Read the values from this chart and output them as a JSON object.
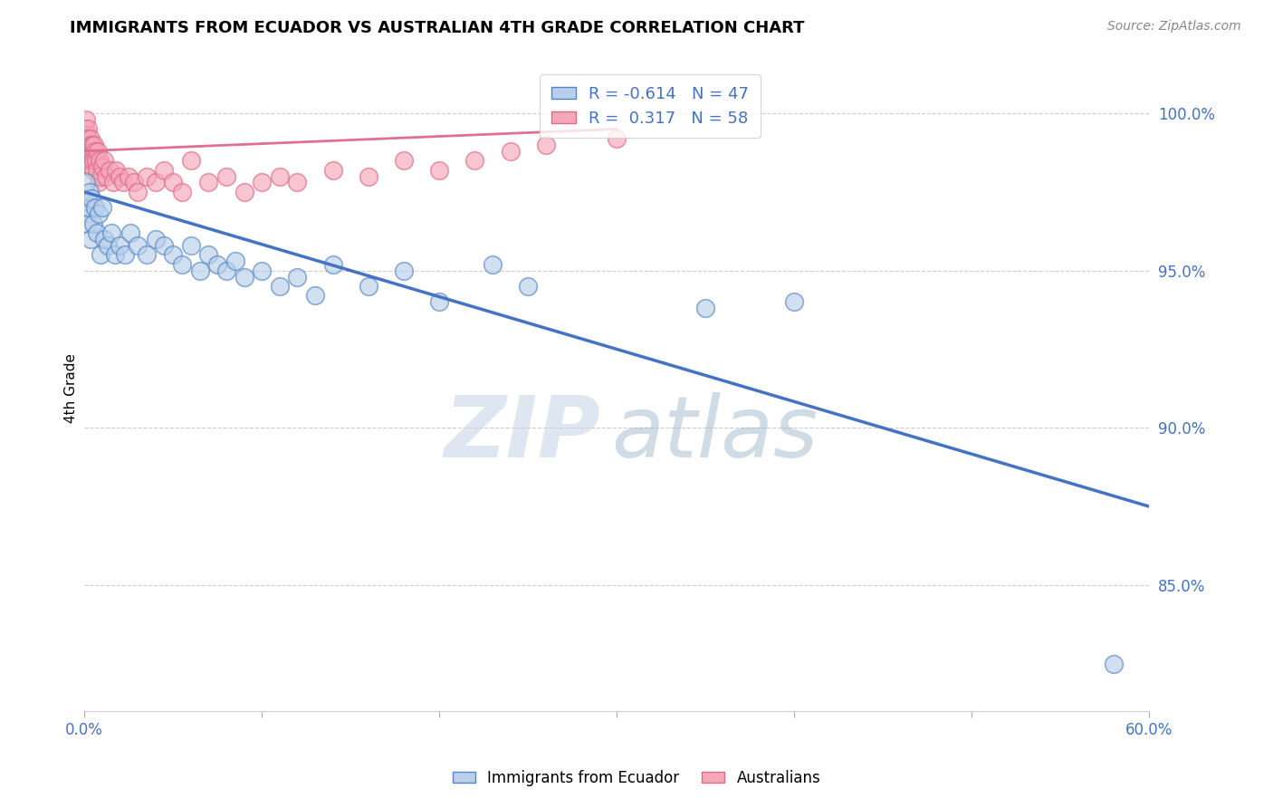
{
  "title": "IMMIGRANTS FROM ECUADOR VS AUSTRALIAN 4TH GRADE CORRELATION CHART",
  "source": "Source: ZipAtlas.com",
  "ylabel": "4th Grade",
  "xlim": [
    0.0,
    60.0
  ],
  "ylim": [
    81.0,
    101.5
  ],
  "yticks": [
    85.0,
    90.0,
    95.0,
    100.0
  ],
  "xticks": [
    0.0,
    10.0,
    20.0,
    30.0,
    40.0,
    50.0,
    60.0
  ],
  "blue_R": -0.614,
  "blue_N": 47,
  "pink_R": 0.317,
  "pink_N": 58,
  "blue_color": "#b8d0ea",
  "pink_color": "#f4a8b8",
  "blue_edge_color": "#5585c5",
  "pink_edge_color": "#e06888",
  "blue_line_color": "#4472c4",
  "pink_line_color": "#e07090",
  "text_blue": "#4472c4",
  "blue_scatter_x": [
    0.05,
    0.1,
    0.15,
    0.2,
    0.25,
    0.3,
    0.35,
    0.4,
    0.5,
    0.6,
    0.7,
    0.8,
    0.9,
    1.0,
    1.1,
    1.3,
    1.5,
    1.7,
    2.0,
    2.3,
    2.6,
    3.0,
    3.5,
    4.0,
    4.5,
    5.0,
    5.5,
    6.0,
    6.5,
    7.0,
    7.5,
    8.0,
    8.5,
    9.0,
    10.0,
    11.0,
    12.0,
    13.0,
    14.0,
    16.0,
    18.0,
    20.0,
    23.0,
    25.0,
    35.0,
    40.0,
    58.0
  ],
  "blue_scatter_y": [
    97.2,
    97.8,
    96.8,
    96.5,
    97.0,
    97.5,
    96.0,
    97.3,
    96.5,
    97.0,
    96.2,
    96.8,
    95.5,
    97.0,
    96.0,
    95.8,
    96.2,
    95.5,
    95.8,
    95.5,
    96.2,
    95.8,
    95.5,
    96.0,
    95.8,
    95.5,
    95.2,
    95.8,
    95.0,
    95.5,
    95.2,
    95.0,
    95.3,
    94.8,
    95.0,
    94.5,
    94.8,
    94.2,
    95.2,
    94.5,
    95.0,
    94.0,
    95.2,
    94.5,
    93.8,
    94.0,
    82.5
  ],
  "pink_scatter_x": [
    0.05,
    0.08,
    0.1,
    0.12,
    0.15,
    0.18,
    0.2,
    0.22,
    0.25,
    0.28,
    0.3,
    0.33,
    0.35,
    0.38,
    0.4,
    0.43,
    0.45,
    0.48,
    0.5,
    0.55,
    0.6,
    0.65,
    0.7,
    0.75,
    0.8,
    0.85,
    0.9,
    1.0,
    1.1,
    1.2,
    1.4,
    1.6,
    1.8,
    2.0,
    2.2,
    2.5,
    2.8,
    3.0,
    3.5,
    4.0,
    4.5,
    5.0,
    5.5,
    6.0,
    7.0,
    8.0,
    9.0,
    10.0,
    11.0,
    12.0,
    14.0,
    16.0,
    18.0,
    20.0,
    22.0,
    24.0,
    26.0,
    30.0
  ],
  "pink_scatter_y": [
    99.5,
    99.2,
    99.8,
    99.0,
    99.3,
    99.5,
    98.8,
    99.2,
    98.5,
    99.0,
    98.8,
    99.2,
    98.5,
    99.0,
    98.3,
    98.8,
    99.0,
    98.2,
    98.5,
    99.0,
    98.8,
    98.5,
    98.2,
    98.8,
    97.8,
    98.5,
    98.0,
    98.3,
    98.5,
    98.0,
    98.2,
    97.8,
    98.2,
    98.0,
    97.8,
    98.0,
    97.8,
    97.5,
    98.0,
    97.8,
    98.2,
    97.8,
    97.5,
    98.5,
    97.8,
    98.0,
    97.5,
    97.8,
    98.0,
    97.8,
    98.2,
    98.0,
    98.5,
    98.2,
    98.5,
    98.8,
    99.0,
    99.2
  ],
  "blue_trend_x": [
    0.0,
    60.0
  ],
  "blue_trend_y": [
    97.5,
    87.5
  ],
  "pink_trend_x": [
    0.0,
    30.0
  ],
  "pink_trend_y": [
    98.8,
    99.5
  ]
}
